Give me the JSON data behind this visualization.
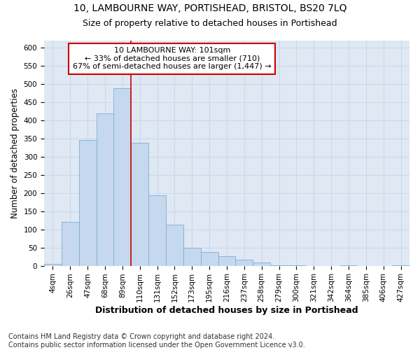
{
  "title1": "10, LAMBOURNE WAY, PORTISHEAD, BRISTOL, BS20 7LQ",
  "title2": "Size of property relative to detached houses in Portishead",
  "xlabel": "Distribution of detached houses by size in Portishead",
  "ylabel": "Number of detached properties",
  "footer1": "Contains HM Land Registry data © Crown copyright and database right 2024.",
  "footer2": "Contains public sector information licensed under the Open Government Licence v3.0.",
  "categories": [
    "4sqm",
    "26sqm",
    "47sqm",
    "68sqm",
    "89sqm",
    "110sqm",
    "131sqm",
    "152sqm",
    "173sqm",
    "195sqm",
    "216sqm",
    "237sqm",
    "258sqm",
    "279sqm",
    "300sqm",
    "321sqm",
    "342sqm",
    "364sqm",
    "385sqm",
    "406sqm",
    "427sqm"
  ],
  "values": [
    5,
    120,
    345,
    418,
    488,
    338,
    193,
    112,
    50,
    37,
    26,
    17,
    8,
    2,
    1,
    0,
    0,
    1,
    0,
    0,
    1
  ],
  "bar_color": "#c5d8ee",
  "bar_edge_color": "#7bafd4",
  "annotation_box_text": "10 LAMBOURNE WAY: 101sqm\n← 33% of detached houses are smaller (710)\n67% of semi-detached houses are larger (1,447) →",
  "annotation_box_color": "#ffffff",
  "annotation_box_edge_color": "#cc0000",
  "red_line_x": 4.5,
  "ylim": [
    0,
    620
  ],
  "yticks": [
    0,
    50,
    100,
    150,
    200,
    250,
    300,
    350,
    400,
    450,
    500,
    550,
    600
  ],
  "bg_color": "#ffffff",
  "grid_color": "#c8d8ea",
  "title1_fontsize": 10,
  "title2_fontsize": 9,
  "xlabel_fontsize": 9,
  "ylabel_fontsize": 8.5,
  "tick_fontsize": 7.5,
  "annotation_fontsize": 8,
  "footer_fontsize": 7
}
